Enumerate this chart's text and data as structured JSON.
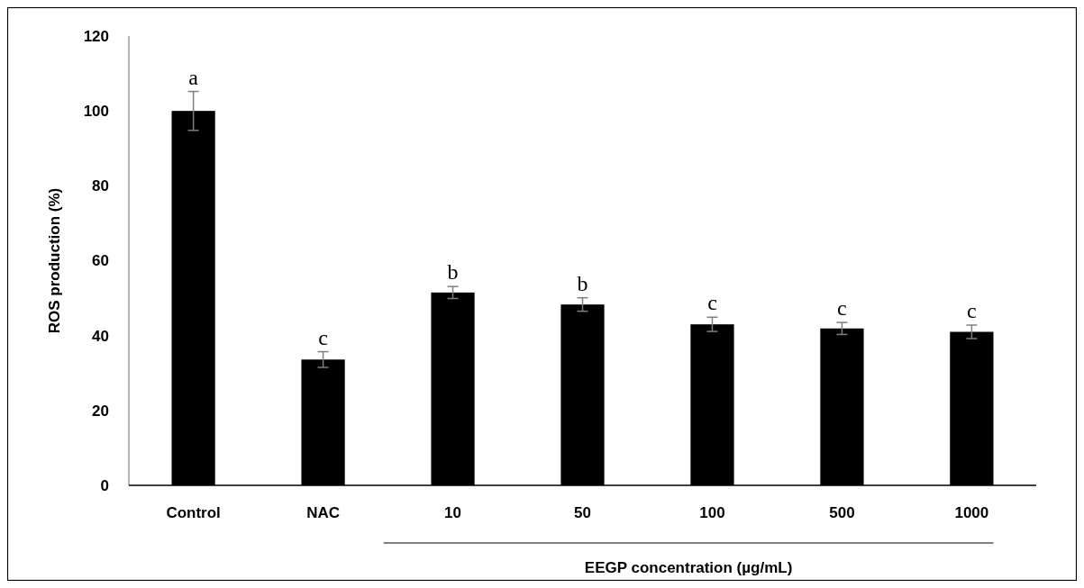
{
  "chart_data": {
    "type": "bar",
    "ylabel": "ROS production (%)",
    "xlabel": "EEGP concentration (µg/mL)",
    "categories": [
      "Control",
      "NAC",
      "10",
      "50",
      "100",
      "500",
      "1000"
    ],
    "values": [
      100,
      33.6,
      51.5,
      48.3,
      43.0,
      41.9,
      41.0
    ],
    "errors": [
      5.2,
      2.1,
      1.6,
      1.8,
      1.9,
      1.6,
      1.8
    ],
    "color": "#000000",
    "ylim": [
      0,
      120
    ],
    "yticks": [
      0,
      20,
      40,
      60,
      80,
      100,
      120
    ],
    "grid": false,
    "annotations": [
      {
        "text": "a",
        "x": "Control",
        "y": 105.2
      },
      {
        "text": "c",
        "x": "NAC",
        "y": 35.7
      },
      {
        "text": "b",
        "x": "10",
        "y": 53.1
      },
      {
        "text": "b",
        "x": "50",
        "y": 50.1
      },
      {
        "text": "c",
        "x": "100",
        "y": 44.9
      },
      {
        "text": "c",
        "x": "500",
        "y": 43.5
      },
      {
        "text": "c",
        "x": "1000",
        "y": 42.8
      }
    ]
  }
}
